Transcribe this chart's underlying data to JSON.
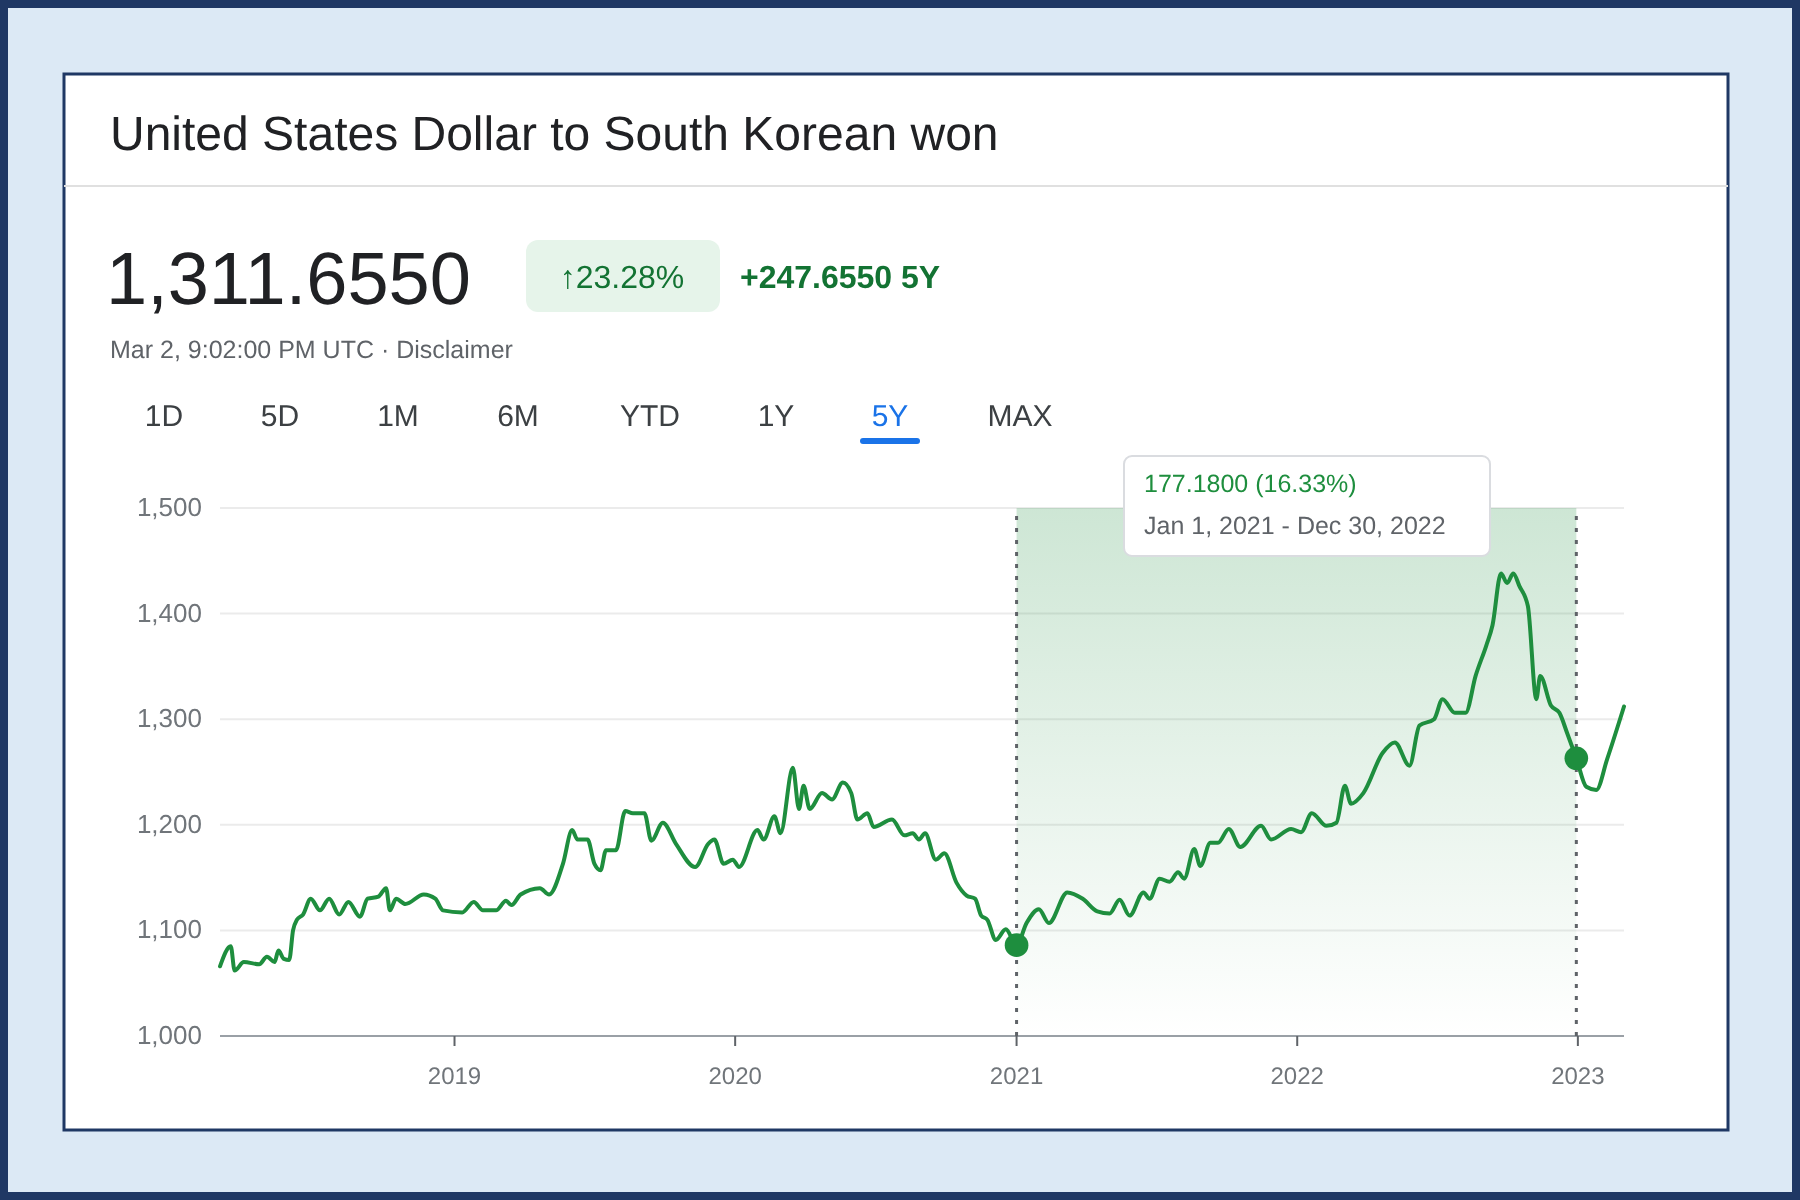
{
  "chart_data": {
    "type": "line",
    "title": "United States Dollar to South Korean won",
    "annotations": [
      "1,311.6550",
      "↑23.28%",
      "+247.6550 5Y",
      "Mar 2, 9:02:00 PM UTC · Disclaimer",
      "1D",
      "5D",
      "1M",
      "6M",
      "YTD",
      "1Y",
      "5Y",
      "MAX",
      "177.1800 (16.33%)",
      "Jan 1, 2021 - Dec 30, 2022"
    ],
    "series": [
      {
        "color": "#1e8e3e",
        "marker": "none",
        "line_style": "solid",
        "x": [
          "2018-03-02",
          "2018-03-16",
          "2018-03-21",
          "2018-04-02",
          "2018-04-22",
          "2018-05-02",
          "2018-05-12",
          "2018-05-17",
          "2018-05-24",
          "2018-05-31",
          "2018-06-05",
          "2018-06-10",
          "2018-06-18",
          "2018-06-28",
          "2018-07-10",
          "2018-07-22",
          "2018-08-04",
          "2018-08-16",
          "2018-08-31",
          "2018-09-10",
          "2018-09-24",
          "2018-10-04",
          "2018-10-09",
          "2018-10-17",
          "2018-10-29",
          "2018-11-22",
          "2018-12-07",
          "2018-12-17",
          "2019-01-11",
          "2019-01-26",
          "2019-02-07",
          "2019-02-24",
          "2019-03-09",
          "2019-03-16",
          "2019-03-28",
          "2019-04-22",
          "2019-05-04",
          "2019-05-22",
          "2019-06-03",
          "2019-06-10",
          "2019-06-23",
          "2019-07-02",
          "2019-07-10",
          "2019-07-17",
          "2019-07-30",
          "2019-08-11",
          "2019-08-21",
          "2019-09-05",
          "2019-09-14",
          "2019-09-29",
          "2019-10-16",
          "2019-11-10",
          "2019-11-27",
          "2019-12-05",
          "2019-12-17",
          "2019-12-29",
          "2020-01-06",
          "2020-01-30",
          "2020-02-07",
          "2020-02-21",
          "2020-02-29",
          "2020-03-16",
          "2020-03-24",
          "2020-03-30",
          "2020-04-07",
          "2020-04-23",
          "2020-05-06",
          "2020-05-20",
          "2020-05-31",
          "2020-06-08",
          "2020-06-21",
          "2020-06-29",
          "2020-07-23",
          "2020-08-08",
          "2020-08-19",
          "2020-08-27",
          "2020-09-04",
          "2020-09-18",
          "2020-09-29",
          "2020-10-15",
          "2020-10-28",
          "2020-11-08",
          "2020-11-16",
          "2020-11-24",
          "2020-12-05",
          "2020-12-18",
          "2021-01-01",
          "2021-01-14",
          "2021-01-30",
          "2021-02-12",
          "2021-03-08",
          "2021-03-28",
          "2021-04-16",
          "2021-05-02",
          "2021-05-15",
          "2021-05-28",
          "2021-06-15",
          "2021-06-23",
          "2021-07-06",
          "2021-07-19",
          "2021-07-30",
          "2021-08-07",
          "2021-08-20",
          "2021-08-28",
          "2021-09-10",
          "2021-09-20",
          "2021-10-04",
          "2021-10-19",
          "2021-11-15",
          "2021-11-28",
          "2021-12-24",
          "2022-01-06",
          "2022-01-20",
          "2022-02-08",
          "2022-02-21",
          "2022-03-04",
          "2022-03-12",
          "2022-03-28",
          "2022-04-22",
          "2022-05-08",
          "2022-05-27",
          "2022-06-09",
          "2022-06-28",
          "2022-07-09",
          "2022-07-25",
          "2022-08-08",
          "2022-08-21",
          "2022-09-04",
          "2022-09-12",
          "2022-09-23",
          "2022-10-01",
          "2022-10-09",
          "2022-10-17",
          "2022-10-28",
          "2022-11-08",
          "2022-11-13",
          "2022-11-27",
          "2022-12-08",
          "2022-12-18",
          "2022-12-30",
          "2023-01-12",
          "2023-01-25",
          "2023-02-08",
          "2023-03-02"
        ],
        "values": [
          1066,
          1085,
          1062,
          1070,
          1068,
          1075,
          1070,
          1081,
          1073,
          1072,
          1100,
          1110,
          1115,
          1130,
          1119,
          1130,
          1115,
          1127,
          1113,
          1130,
          1132,
          1140,
          1119,
          1130,
          1125,
          1134,
          1130,
          1119,
          1117,
          1127,
          1119,
          1119,
          1128,
          1124,
          1134,
          1140,
          1134,
          1163,
          1195,
          1186,
          1186,
          1163,
          1157,
          1176,
          1176,
          1213,
          1211,
          1211,
          1185,
          1202,
          1182,
          1160,
          1182,
          1186,
          1163,
          1167,
          1160,
          1195,
          1186,
          1208,
          1192,
          1254,
          1215,
          1237,
          1215,
          1230,
          1224,
          1240,
          1230,
          1205,
          1211,
          1198,
          1205,
          1190,
          1192,
          1186,
          1192,
          1167,
          1173,
          1145,
          1133,
          1130,
          1114,
          1110,
          1091,
          1101,
          1086,
          1107,
          1120,
          1107,
          1136,
          1130,
          1118,
          1116,
          1129,
          1114,
          1136,
          1130,
          1149,
          1146,
          1155,
          1149,
          1177,
          1161,
          1183,
          1183,
          1196,
          1179,
          1199,
          1186,
          1196,
          1193,
          1211,
          1199,
          1202,
          1237,
          1220,
          1230,
          1268,
          1278,
          1256,
          1294,
          1300,
          1319,
          1306,
          1306,
          1341,
          1370,
          1389,
          1438,
          1429,
          1438,
          1426,
          1407,
          1319,
          1341,
          1313,
          1306,
          1287,
          1263,
          1236,
          1233,
          1262,
          1312
        ]
      },
      {
        "type": "scatter",
        "color": "#1e8e3e",
        "marker": "circle",
        "x": [
          "2021-01-01",
          "2022-12-30"
        ],
        "values": [
          1086,
          1263
        ]
      }
    ],
    "xlim": [
      "2018-03-02",
      "2023-03-02"
    ],
    "xticks": [
      "2019",
      "2020",
      "2021",
      "2022",
      "2023"
    ],
    "ylim": [
      1000,
      1500
    ],
    "yticks": [
      {
        "value": 1000,
        "label": "1,000"
      },
      {
        "value": 1100,
        "label": "1,100"
      },
      {
        "value": 1200,
        "label": "1,200"
      },
      {
        "value": 1300,
        "label": "1,300"
      },
      {
        "value": 1400,
        "label": "1,400"
      },
      {
        "value": 1500,
        "label": "1,500"
      }
    ],
    "ref_lines": [
      {
        "axis": "x",
        "value": "2021-01-01",
        "color": "#5f6368",
        "line_style": "dotted"
      },
      {
        "axis": "x",
        "value": "2022-12-30",
        "color": "#5f6368",
        "line_style": "dotted"
      }
    ],
    "bands": [
      {
        "axis": "x",
        "from": "2021-01-01",
        "to": "2022-12-30",
        "color": "#1e8e3e"
      }
    ],
    "grid": "y"
  }
}
